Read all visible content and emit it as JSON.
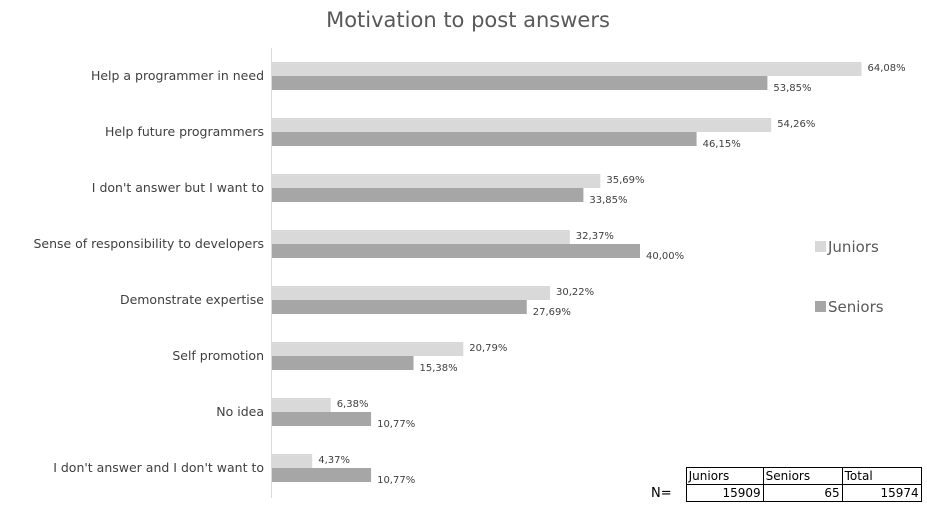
{
  "chart_data": {
    "type": "bar",
    "orientation": "horizontal",
    "title": "Motivation to post answers",
    "categories": [
      "Help a programmer in need",
      "Help future programmers",
      "I don't answer but I want to",
      "Sense of responsibility to developers",
      "Demonstrate expertise",
      "Self promotion",
      "No idea",
      "I don't answer and I don't want to"
    ],
    "series": [
      {
        "name": "Juniors",
        "color": "#d9d9d9",
        "values": [
          64.08,
          54.26,
          35.69,
          32.37,
          30.22,
          20.79,
          6.38,
          4.37
        ],
        "labels": [
          "64,08%",
          "54,26%",
          "35,69%",
          "32,37%",
          "30,22%",
          "20,79%",
          "6,38%",
          "4,37%"
        ]
      },
      {
        "name": "Seniors",
        "color": "#a6a6a6",
        "values": [
          53.85,
          46.15,
          33.85,
          40.0,
          27.69,
          15.38,
          10.77,
          10.77
        ],
        "labels": [
          "53,85%",
          "46,15%",
          "33,85%",
          "40,00%",
          "27,69%",
          "15,38%",
          "10,77%",
          "10,77%"
        ]
      }
    ],
    "xlim": [
      0,
      70
    ],
    "grid": false,
    "legend_position": "right"
  },
  "sample_table": {
    "row_label": "N=",
    "headers": [
      "Juniors",
      "Seniors",
      "Total"
    ],
    "values": [
      "15909",
      "65",
      "15974"
    ]
  }
}
